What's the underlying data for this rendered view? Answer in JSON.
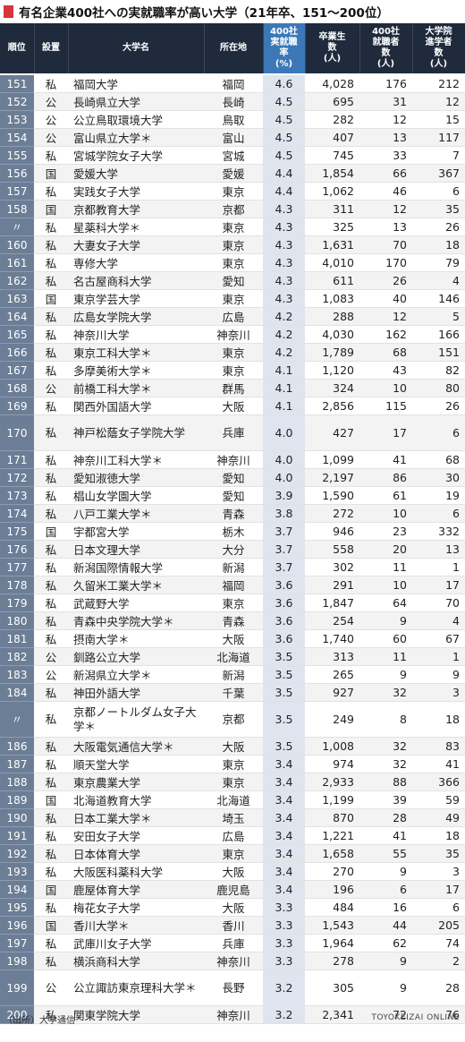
{
  "title": "有名企業400社への実就職率が高い大学（21年卒、151～200位）",
  "headers": {
    "rank": "順位",
    "type": "設置",
    "name": "大学名",
    "location": "所在地",
    "rate": "400社\n実就職\n率\n(%)",
    "graduates": "卒業生\n数\n(人)",
    "employed": "400社\n就職者\n数\n(人)",
    "grad_school": "大学院\n進学者\n数\n(人)"
  },
  "rows": [
    {
      "rank": "151",
      "type": "私",
      "name": "福岡大学",
      "location": "福岡",
      "rate": "4.6",
      "graduates": "4,028",
      "employed": "176",
      "grad_school": "212"
    },
    {
      "rank": "152",
      "type": "公",
      "name": "長崎県立大学",
      "location": "長崎",
      "rate": "4.5",
      "graduates": "695",
      "employed": "31",
      "grad_school": "12"
    },
    {
      "rank": "153",
      "type": "公",
      "name": "公立鳥取環境大学",
      "location": "鳥取",
      "rate": "4.5",
      "graduates": "282",
      "employed": "12",
      "grad_school": "15"
    },
    {
      "rank": "154",
      "type": "公",
      "name": "富山県立大学＊",
      "location": "富山",
      "rate": "4.5",
      "graduates": "407",
      "employed": "13",
      "grad_school": "117"
    },
    {
      "rank": "155",
      "type": "私",
      "name": "宮城学院女子大学",
      "location": "宮城",
      "rate": "4.5",
      "graduates": "745",
      "employed": "33",
      "grad_school": "7"
    },
    {
      "rank": "156",
      "type": "国",
      "name": "愛媛大学",
      "location": "愛媛",
      "rate": "4.4",
      "graduates": "1,854",
      "employed": "66",
      "grad_school": "367"
    },
    {
      "rank": "157",
      "type": "私",
      "name": "実践女子大学",
      "location": "東京",
      "rate": "4.4",
      "graduates": "1,062",
      "employed": "46",
      "grad_school": "6"
    },
    {
      "rank": "158",
      "type": "国",
      "name": "京都教育大学",
      "location": "京都",
      "rate": "4.3",
      "graduates": "311",
      "employed": "12",
      "grad_school": "35"
    },
    {
      "rank": "〃",
      "type": "私",
      "name": "星薬科大学＊",
      "location": "東京",
      "rate": "4.3",
      "graduates": "325",
      "employed": "13",
      "grad_school": "26"
    },
    {
      "rank": "160",
      "type": "私",
      "name": "大妻女子大学",
      "location": "東京",
      "rate": "4.3",
      "graduates": "1,631",
      "employed": "70",
      "grad_school": "18"
    },
    {
      "rank": "161",
      "type": "私",
      "name": "専修大学",
      "location": "東京",
      "rate": "4.3",
      "graduates": "4,010",
      "employed": "170",
      "grad_school": "79"
    },
    {
      "rank": "162",
      "type": "私",
      "name": "名古屋商科大学",
      "location": "愛知",
      "rate": "4.3",
      "graduates": "611",
      "employed": "26",
      "grad_school": "4"
    },
    {
      "rank": "163",
      "type": "国",
      "name": "東京学芸大学",
      "location": "東京",
      "rate": "4.3",
      "graduates": "1,083",
      "employed": "40",
      "grad_school": "146"
    },
    {
      "rank": "164",
      "type": "私",
      "name": "広島女学院大学",
      "location": "広島",
      "rate": "4.2",
      "graduates": "288",
      "employed": "12",
      "grad_school": "5"
    },
    {
      "rank": "165",
      "type": "私",
      "name": "神奈川大学",
      "location": "神奈川",
      "rate": "4.2",
      "graduates": "4,030",
      "employed": "162",
      "grad_school": "166"
    },
    {
      "rank": "166",
      "type": "私",
      "name": "東京工科大学＊",
      "location": "東京",
      "rate": "4.2",
      "graduates": "1,789",
      "employed": "68",
      "grad_school": "151"
    },
    {
      "rank": "167",
      "type": "私",
      "name": "多摩美術大学＊",
      "location": "東京",
      "rate": "4.1",
      "graduates": "1,120",
      "employed": "43",
      "grad_school": "82"
    },
    {
      "rank": "168",
      "type": "公",
      "name": "前橋工科大学＊",
      "location": "群馬",
      "rate": "4.1",
      "graduates": "324",
      "employed": "10",
      "grad_school": "80"
    },
    {
      "rank": "169",
      "type": "私",
      "name": "関西外国語大学",
      "location": "大阪",
      "rate": "4.1",
      "graduates": "2,856",
      "employed": "115",
      "grad_school": "26"
    },
    {
      "rank": "170",
      "type": "私",
      "name": "神戸松蔭女子学院大学",
      "location": "兵庫",
      "rate": "4.0",
      "graduates": "427",
      "employed": "17",
      "grad_school": "6",
      "tall": true
    },
    {
      "rank": "171",
      "type": "私",
      "name": "神奈川工科大学＊",
      "location": "神奈川",
      "rate": "4.0",
      "graduates": "1,099",
      "employed": "41",
      "grad_school": "68"
    },
    {
      "rank": "172",
      "type": "私",
      "name": "愛知淑徳大学",
      "location": "愛知",
      "rate": "4.0",
      "graduates": "2,197",
      "employed": "86",
      "grad_school": "30"
    },
    {
      "rank": "173",
      "type": "私",
      "name": "椙山女学園大学",
      "location": "愛知",
      "rate": "3.9",
      "graduates": "1,590",
      "employed": "61",
      "grad_school": "19"
    },
    {
      "rank": "174",
      "type": "私",
      "name": "八戸工業大学＊",
      "location": "青森",
      "rate": "3.8",
      "graduates": "272",
      "employed": "10",
      "grad_school": "6"
    },
    {
      "rank": "175",
      "type": "国",
      "name": "宇都宮大学",
      "location": "栃木",
      "rate": "3.7",
      "graduates": "946",
      "employed": "23",
      "grad_school": "332"
    },
    {
      "rank": "176",
      "type": "私",
      "name": "日本文理大学",
      "location": "大分",
      "rate": "3.7",
      "graduates": "558",
      "employed": "20",
      "grad_school": "13"
    },
    {
      "rank": "177",
      "type": "私",
      "name": "新潟国際情報大学",
      "location": "新潟",
      "rate": "3.7",
      "graduates": "302",
      "employed": "11",
      "grad_school": "1"
    },
    {
      "rank": "178",
      "type": "私",
      "name": "久留米工業大学＊",
      "location": "福岡",
      "rate": "3.6",
      "graduates": "291",
      "employed": "10",
      "grad_school": "17"
    },
    {
      "rank": "179",
      "type": "私",
      "name": "武蔵野大学",
      "location": "東京",
      "rate": "3.6",
      "graduates": "1,847",
      "employed": "64",
      "grad_school": "70"
    },
    {
      "rank": "180",
      "type": "私",
      "name": "青森中央学院大学＊",
      "location": "青森",
      "rate": "3.6",
      "graduates": "254",
      "employed": "9",
      "grad_school": "4"
    },
    {
      "rank": "181",
      "type": "私",
      "name": "摂南大学＊",
      "location": "大阪",
      "rate": "3.6",
      "graduates": "1,740",
      "employed": "60",
      "grad_school": "67"
    },
    {
      "rank": "182",
      "type": "公",
      "name": "釧路公立大学",
      "location": "北海道",
      "rate": "3.5",
      "graduates": "313",
      "employed": "11",
      "grad_school": "1"
    },
    {
      "rank": "183",
      "type": "公",
      "name": "新潟県立大学＊",
      "location": "新潟",
      "rate": "3.5",
      "graduates": "265",
      "employed": "9",
      "grad_school": "9"
    },
    {
      "rank": "184",
      "type": "私",
      "name": "神田外語大学",
      "location": "千葉",
      "rate": "3.5",
      "graduates": "927",
      "employed": "32",
      "grad_school": "3"
    },
    {
      "rank": "〃",
      "type": "私",
      "name": "京都ノートルダム女子大学＊",
      "location": "京都",
      "rate": "3.5",
      "graduates": "249",
      "employed": "8",
      "grad_school": "18",
      "tall": true
    },
    {
      "rank": "186",
      "type": "私",
      "name": "大阪電気通信大学＊",
      "location": "大阪",
      "rate": "3.5",
      "graduates": "1,008",
      "employed": "32",
      "grad_school": "83"
    },
    {
      "rank": "187",
      "type": "私",
      "name": "順天堂大学",
      "location": "東京",
      "rate": "3.4",
      "graduates": "974",
      "employed": "32",
      "grad_school": "41"
    },
    {
      "rank": "188",
      "type": "私",
      "name": "東京農業大学",
      "location": "東京",
      "rate": "3.4",
      "graduates": "2,933",
      "employed": "88",
      "grad_school": "366"
    },
    {
      "rank": "189",
      "type": "国",
      "name": "北海道教育大学",
      "location": "北海道",
      "rate": "3.4",
      "graduates": "1,199",
      "employed": "39",
      "grad_school": "59"
    },
    {
      "rank": "190",
      "type": "私",
      "name": "日本工業大学＊",
      "location": "埼玉",
      "rate": "3.4",
      "graduates": "870",
      "employed": "28",
      "grad_school": "49"
    },
    {
      "rank": "191",
      "type": "私",
      "name": "安田女子大学",
      "location": "広島",
      "rate": "3.4",
      "graduates": "1,221",
      "employed": "41",
      "grad_school": "18"
    },
    {
      "rank": "192",
      "type": "私",
      "name": "日本体育大学",
      "location": "東京",
      "rate": "3.4",
      "graduates": "1,658",
      "employed": "55",
      "grad_school": "35"
    },
    {
      "rank": "193",
      "type": "私",
      "name": "大阪医科薬科大学",
      "location": "大阪",
      "rate": "3.4",
      "graduates": "270",
      "employed": "9",
      "grad_school": "3"
    },
    {
      "rank": "194",
      "type": "国",
      "name": "鹿屋体育大学",
      "location": "鹿児島",
      "rate": "3.4",
      "graduates": "196",
      "employed": "6",
      "grad_school": "17"
    },
    {
      "rank": "195",
      "type": "私",
      "name": "梅花女子大学",
      "location": "大阪",
      "rate": "3.3",
      "graduates": "484",
      "employed": "16",
      "grad_school": "6"
    },
    {
      "rank": "196",
      "type": "国",
      "name": "香川大学＊",
      "location": "香川",
      "rate": "3.3",
      "graduates": "1,543",
      "employed": "44",
      "grad_school": "205"
    },
    {
      "rank": "197",
      "type": "私",
      "name": "武庫川女子大学",
      "location": "兵庫",
      "rate": "3.3",
      "graduates": "1,964",
      "employed": "62",
      "grad_school": "74"
    },
    {
      "rank": "198",
      "type": "私",
      "name": "横浜商科大学",
      "location": "神奈川",
      "rate": "3.3",
      "graduates": "278",
      "employed": "9",
      "grad_school": "2"
    },
    {
      "rank": "199",
      "type": "公",
      "name": "公立諏訪東京理科大学＊",
      "location": "長野",
      "rate": "3.2",
      "graduates": "305",
      "employed": "9",
      "grad_school": "28",
      "tall": true
    },
    {
      "rank": "200",
      "type": "私",
      "name": "関東学院大学",
      "location": "神奈川",
      "rate": "3.2",
      "graduates": "2,341",
      "employed": "72",
      "grad_school": "76"
    }
  ],
  "source": "（出所）大学通信",
  "brand": "TOYOKEIZAI ONLINE"
}
